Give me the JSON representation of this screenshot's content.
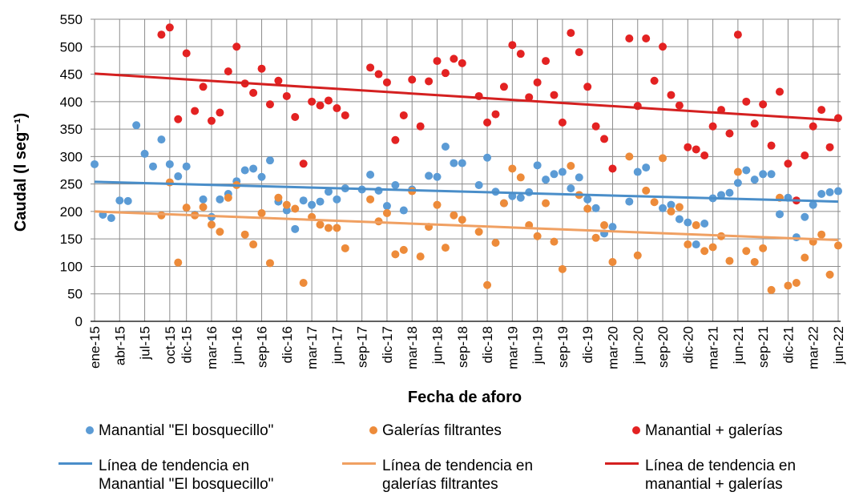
{
  "chart_data": {
    "type": "scatter",
    "x_label": "Fecha de aforo",
    "y_label": "Caudal (l seg⁻¹)",
    "xlim": [
      "2015-01",
      "2022-06"
    ],
    "xticks": [
      {
        "value": "2015-01",
        "label": "ene-15"
      },
      {
        "value": "2015-04",
        "label": "abr-15"
      },
      {
        "value": "2015-07",
        "label": "jul-15"
      },
      {
        "value": "2015-10",
        "label": "oct-15"
      },
      {
        "value": "2015-12",
        "label": "dic-15"
      },
      {
        "value": "2016-03",
        "label": "mar-16"
      },
      {
        "value": "2016-06",
        "label": "jun-16"
      },
      {
        "value": "2016-09",
        "label": "sep-16"
      },
      {
        "value": "2016-12",
        "label": "dic-16"
      },
      {
        "value": "2017-03",
        "label": "mar-17"
      },
      {
        "value": "2017-06",
        "label": "jun-17"
      },
      {
        "value": "2017-09",
        "label": "sep-17"
      },
      {
        "value": "2017-12",
        "label": "dic-17"
      },
      {
        "value": "2018-03",
        "label": "mar-18"
      },
      {
        "value": "2018-06",
        "label": "jun-18"
      },
      {
        "value": "2018-09",
        "label": "sep-18"
      },
      {
        "value": "2018-12",
        "label": "dic-18"
      },
      {
        "value": "2019-03",
        "label": "mar-19"
      },
      {
        "value": "2019-06",
        "label": "jun-19"
      },
      {
        "value": "2019-09",
        "label": "sep-19"
      },
      {
        "value": "2019-12",
        "label": "dic-19"
      },
      {
        "value": "2020-03",
        "label": "mar-20"
      },
      {
        "value": "2020-06",
        "label": "jun-20"
      },
      {
        "value": "2020-09",
        "label": "sep-20"
      },
      {
        "value": "2020-12",
        "label": "dic-20"
      },
      {
        "value": "2021-03",
        "label": "mar-21"
      },
      {
        "value": "2021-06",
        "label": "jun-21"
      },
      {
        "value": "2021-09",
        "label": "sep-21"
      },
      {
        "value": "2021-12",
        "label": "dic-21"
      },
      {
        "value": "2022-03",
        "label": "mar-22"
      },
      {
        "value": "2022-06",
        "label": "jun-22"
      }
    ],
    "ylim": [
      0,
      550
    ],
    "yticks": [
      0,
      50,
      100,
      150,
      200,
      250,
      300,
      350,
      400,
      450,
      500,
      550
    ],
    "grid": true,
    "series": [
      {
        "name": "Manantial \"El bosquecillo\"",
        "color": "#5b9bd5",
        "mark": "point",
        "x": [
          "2015-01",
          "2015-02",
          "2015-03",
          "2015-04",
          "2015-05",
          "2015-06",
          "2015-07",
          "2015-08",
          "2015-09",
          "2015-10",
          "2015-11",
          "2015-12",
          "2016-01",
          "2016-02",
          "2016-03",
          "2016-04",
          "2016-05",
          "2016-06",
          "2016-07",
          "2016-08",
          "2016-09",
          "2016-10",
          "2016-11",
          "2016-12",
          "2017-01",
          "2017-02",
          "2017-03",
          "2017-04",
          "2017-05",
          "2017-06",
          "2017-07",
          "2017-09",
          "2017-10",
          "2017-11",
          "2017-12",
          "2018-01",
          "2018-02",
          "2018-03",
          "2018-05",
          "2018-06",
          "2018-07",
          "2018-08",
          "2018-09",
          "2018-11",
          "2018-12",
          "2019-01",
          "2019-02",
          "2019-03",
          "2019-04",
          "2019-05",
          "2019-06",
          "2019-07",
          "2019-08",
          "2019-09",
          "2019-10",
          "2019-11",
          "2019-12",
          "2020-01",
          "2020-02",
          "2020-03",
          "2020-05",
          "2020-06",
          "2020-07",
          "2020-09",
          "2020-10",
          "2020-11",
          "2020-12",
          "2021-01",
          "2021-02",
          "2021-03",
          "2021-04",
          "2021-05",
          "2021-06",
          "2021-07",
          "2021-08",
          "2021-09",
          "2021-10",
          "2021-11",
          "2021-12",
          "2022-01",
          "2022-02",
          "2022-03",
          "2022-04",
          "2022-05",
          "2022-06"
        ],
        "values": [
          286,
          194,
          188,
          220,
          219,
          357,
          305,
          282,
          331,
          286,
          264,
          282,
          194,
          222,
          190,
          222,
          232,
          255,
          275,
          278,
          263,
          293,
          218,
          202,
          168,
          220,
          212,
          218,
          236,
          222,
          242,
          240,
          267,
          238,
          210,
          248,
          202,
          240,
          265,
          263,
          318,
          288,
          288,
          248,
          298,
          236,
          215,
          228,
          225,
          235,
          284,
          258,
          268,
          272,
          242,
          262,
          222,
          206,
          160,
          172,
          218,
          272,
          280,
          206,
          212,
          186,
          180,
          140,
          178,
          224,
          230,
          234,
          252,
          275,
          258,
          268,
          268,
          195,
          225,
          153,
          190,
          212,
          232,
          235,
          237
        ]
      },
      {
        "name": "Galerías filtrantes",
        "color": "#ed8b3a",
        "mark": "point",
        "x": [
          "2015-09",
          "2015-10",
          "2015-11",
          "2015-12",
          "2016-01",
          "2016-02",
          "2016-03",
          "2016-04",
          "2016-05",
          "2016-06",
          "2016-07",
          "2016-08",
          "2016-09",
          "2016-10",
          "2016-11",
          "2016-12",
          "2017-01",
          "2017-02",
          "2017-03",
          "2017-04",
          "2017-05",
          "2017-06",
          "2017-07",
          "2017-10",
          "2017-11",
          "2017-12",
          "2018-01",
          "2018-02",
          "2018-03",
          "2018-04",
          "2018-05",
          "2018-06",
          "2018-07",
          "2018-08",
          "2018-09",
          "2018-11",
          "2018-12",
          "2019-01",
          "2019-02",
          "2019-03",
          "2019-04",
          "2019-05",
          "2019-06",
          "2019-07",
          "2019-08",
          "2019-09",
          "2019-10",
          "2019-11",
          "2019-12",
          "2020-01",
          "2020-02",
          "2020-03",
          "2020-05",
          "2020-06",
          "2020-07",
          "2020-08",
          "2020-09",
          "2020-10",
          "2020-11",
          "2020-12",
          "2021-01",
          "2021-02",
          "2021-03",
          "2021-04",
          "2021-05",
          "2021-06",
          "2021-07",
          "2021-08",
          "2021-09",
          "2021-10",
          "2021-11",
          "2021-12",
          "2022-01",
          "2022-02",
          "2022-03",
          "2022-04",
          "2022-05",
          "2022-06"
        ],
        "values": [
          193,
          253,
          107,
          207,
          193,
          208,
          176,
          163,
          225,
          248,
          158,
          140,
          197,
          106,
          225,
          212,
          205,
          70,
          190,
          176,
          170,
          170,
          133,
          222,
          182,
          197,
          122,
          130,
          237,
          118,
          172,
          212,
          134,
          193,
          185,
          163,
          66,
          143,
          215,
          278,
          262,
          175,
          155,
          215,
          145,
          95,
          283,
          230,
          205,
          152,
          175,
          108,
          300,
          120,
          238,
          217,
          297,
          200,
          208,
          140,
          175,
          128,
          135,
          155,
          110,
          272,
          128,
          108,
          133,
          57,
          225,
          65,
          70,
          116,
          145,
          158,
          85,
          138
        ]
      },
      {
        "name": "Manantial + galerías",
        "color": "#e32222",
        "mark": "point",
        "x": [
          "2015-09",
          "2015-10",
          "2015-11",
          "2015-12",
          "2016-01",
          "2016-02",
          "2016-03",
          "2016-04",
          "2016-05",
          "2016-06",
          "2016-07",
          "2016-08",
          "2016-09",
          "2016-10",
          "2016-11",
          "2016-12",
          "2017-01",
          "2017-02",
          "2017-03",
          "2017-04",
          "2017-05",
          "2017-06",
          "2017-07",
          "2017-10",
          "2017-11",
          "2017-12",
          "2018-01",
          "2018-02",
          "2018-03",
          "2018-04",
          "2018-05",
          "2018-06",
          "2018-07",
          "2018-08",
          "2018-09",
          "2018-11",
          "2018-12",
          "2019-01",
          "2019-02",
          "2019-03",
          "2019-04",
          "2019-05",
          "2019-06",
          "2019-07",
          "2019-08",
          "2019-09",
          "2019-10",
          "2019-11",
          "2019-12",
          "2020-01",
          "2020-02",
          "2020-03",
          "2020-05",
          "2020-06",
          "2020-07",
          "2020-08",
          "2020-09",
          "2020-10",
          "2020-11",
          "2020-12",
          "2021-01",
          "2021-02",
          "2021-03",
          "2021-04",
          "2021-05",
          "2021-06",
          "2021-07",
          "2021-08",
          "2021-09",
          "2021-10",
          "2021-11",
          "2021-12",
          "2022-01",
          "2022-02",
          "2022-03",
          "2022-04",
          "2022-05",
          "2022-06"
        ],
        "values": [
          522,
          535,
          368,
          488,
          383,
          427,
          365,
          380,
          455,
          500,
          433,
          416,
          460,
          395,
          438,
          410,
          372,
          287,
          400,
          393,
          402,
          388,
          375,
          462,
          450,
          435,
          330,
          375,
          440,
          355,
          437,
          474,
          452,
          478,
          470,
          410,
          362,
          377,
          427,
          503,
          487,
          408,
          435,
          474,
          412,
          362,
          525,
          490,
          427,
          355,
          332,
          278,
          515,
          392,
          515,
          438,
          500,
          412,
          393,
          317,
          313,
          302,
          355,
          385,
          342,
          522,
          400,
          360,
          395,
          320,
          418,
          287,
          220,
          302,
          355,
          385,
          317,
          370
        ]
      },
      {
        "name": "Línea de tendencia en Manantial \"El bosquecillo\"",
        "color": "#4a8ec9",
        "mark": "line",
        "x": [
          "2015-01",
          "2022-06"
        ],
        "values": [
          254,
          218
        ]
      },
      {
        "name": "Línea de tendencia en galerías filtrantes",
        "color": "#f0a062",
        "mark": "line",
        "x": [
          "2015-01",
          "2022-06"
        ],
        "values": [
          200,
          148
        ]
      },
      {
        "name": "Línea de tendencia en manantial + galerías",
        "color": "#d42020",
        "mark": "line",
        "x": [
          "2015-01",
          "2022-06"
        ],
        "values": [
          451,
          366
        ]
      }
    ]
  }
}
